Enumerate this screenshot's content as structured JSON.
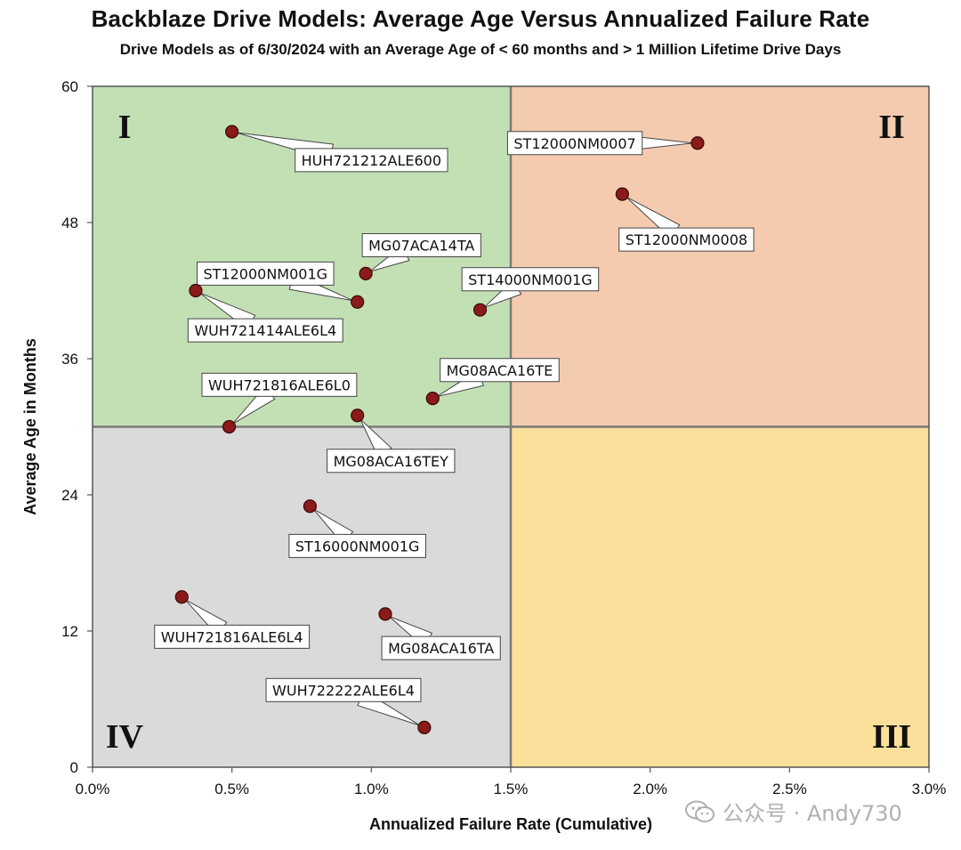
{
  "title": "Backblaze Drive Models: Average Age Versus Annualized Failure Rate",
  "subtitle": "Drive Models as of 6/30/2024 with an Average Age of < 60 months and > 1 Million Lifetime Drive Days",
  "watermark": {
    "text": "公众号 · Andy730",
    "icon": "wechat-icon"
  },
  "chart_data": {
    "type": "scatter",
    "title": "Backblaze Drive Models: Average Age Versus Annualized Failure Rate",
    "subtitle": "Drive Models as of 6/30/2024 with an Average Age of < 60 months and > 1 Million Lifetime Drive Days",
    "xlabel": "Annualized Failure Rate (Cumulative)",
    "ylabel": "Average Age in Months",
    "xlim": [
      0,
      3.0
    ],
    "ylim": [
      0,
      60
    ],
    "x_ticks": [
      0,
      0.5,
      1.0,
      1.5,
      2.0,
      2.5,
      3.0
    ],
    "x_tick_labels": [
      "0.0%",
      "0.5%",
      "1.0%",
      "1.5%",
      "2.0%",
      "2.5%",
      "3.0%"
    ],
    "y_ticks": [
      0,
      12,
      24,
      36,
      48,
      60
    ],
    "y_tick_labels": [
      "0",
      "12",
      "24",
      "36",
      "48",
      "60"
    ],
    "grid": false,
    "quadrant_split": {
      "x": 1.5,
      "y": 30
    },
    "quadrants": [
      {
        "id": "q1",
        "label": "I",
        "x_range": [
          0,
          1.5
        ],
        "y_range": [
          30,
          60
        ],
        "color": "#c3e0b5",
        "label_corner": "top-left"
      },
      {
        "id": "q2",
        "label": "II",
        "x_range": [
          1.5,
          3.0
        ],
        "y_range": [
          30,
          60
        ],
        "color": "#f5cbb0",
        "label_corner": "top-right"
      },
      {
        "id": "q3",
        "label": "III",
        "x_range": [
          1.5,
          3.0
        ],
        "y_range": [
          0,
          30
        ],
        "color": "#fbe09c",
        "label_corner": "bottom-right"
      },
      {
        "id": "q4",
        "label": "IV",
        "x_range": [
          0,
          1.5
        ],
        "y_range": [
          0,
          30
        ],
        "color": "#dadada",
        "label_corner": "bottom-left"
      }
    ],
    "point_color": "#8b1a1a",
    "points": [
      {
        "label": "HUH721212ALE600",
        "x": 0.5,
        "y": 56.0,
        "label_x": 1.0,
        "label_y": 53.5
      },
      {
        "label": "ST12000NM0007",
        "x": 2.17,
        "y": 55.0,
        "label_x": 1.73,
        "label_y": 55.0
      },
      {
        "label": "ST12000NM0008",
        "x": 1.9,
        "y": 50.5,
        "label_x": 2.13,
        "label_y": 46.5
      },
      {
        "label": "MG07ACA14TA",
        "x": 0.98,
        "y": 43.5,
        "label_x": 1.18,
        "label_y": 46.0
      },
      {
        "label": "ST12000NM001G",
        "x": 0.95,
        "y": 41.0,
        "label_x": 0.62,
        "label_y": 43.5
      },
      {
        "label": "WUH721414ALE6L4",
        "x": 0.37,
        "y": 42.0,
        "label_x": 0.62,
        "label_y": 38.5
      },
      {
        "label": "ST14000NM001G",
        "x": 1.39,
        "y": 40.3,
        "label_x": 1.57,
        "label_y": 43.0
      },
      {
        "label": "MG08ACA16TE",
        "x": 1.22,
        "y": 32.5,
        "label_x": 1.46,
        "label_y": 35.0
      },
      {
        "label": "WUH721816ALE6L0",
        "x": 0.49,
        "y": 30.0,
        "label_x": 0.67,
        "label_y": 33.7
      },
      {
        "label": "MG08ACA16TEY",
        "x": 0.95,
        "y": 31.0,
        "label_x": 1.07,
        "label_y": 27.0
      },
      {
        "label": "ST16000NM001G",
        "x": 0.78,
        "y": 23.0,
        "label_x": 0.95,
        "label_y": 19.5
      },
      {
        "label": "WUH721816ALE6L4",
        "x": 0.32,
        "y": 15.0,
        "label_x": 0.5,
        "label_y": 11.5
      },
      {
        "label": "MG08ACA16TA",
        "x": 1.05,
        "y": 13.5,
        "label_x": 1.25,
        "label_y": 10.5
      },
      {
        "label": "WUH722222ALE6L4",
        "x": 1.19,
        "y": 3.5,
        "label_x": 0.9,
        "label_y": 6.8
      }
    ]
  }
}
